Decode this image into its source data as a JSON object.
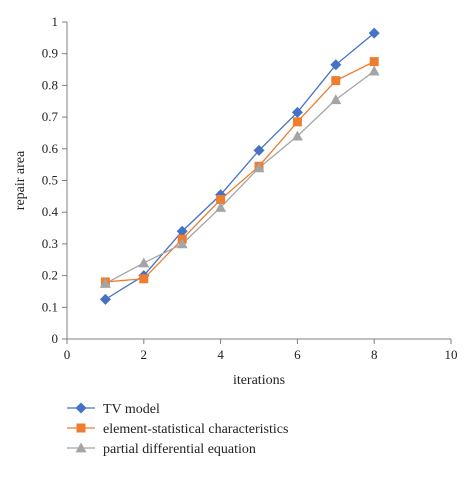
{
  "chart_data": {
    "type": "line",
    "xlabel": "iterations",
    "ylabel": "repair area",
    "xlim": [
      0,
      10
    ],
    "ylim": [
      0,
      1
    ],
    "xticks": [
      0,
      2,
      4,
      6,
      8,
      10
    ],
    "yticks": [
      0,
      0.1,
      0.2,
      0.3,
      0.4,
      0.5,
      0.6,
      0.7,
      0.8,
      0.9,
      1
    ],
    "grid": false,
    "legend_position": "bottom",
    "x": [
      1,
      2,
      3,
      4,
      5,
      6,
      7,
      8
    ],
    "series": [
      {
        "name": "TV model",
        "color": "#4472c4",
        "marker": "diamond",
        "values": [
          0.125,
          0.2,
          0.34,
          0.455,
          0.595,
          0.715,
          0.865,
          0.965
        ]
      },
      {
        "name": "element-statistical characteristics",
        "color": "#ed7d31",
        "marker": "square",
        "values": [
          0.18,
          0.19,
          0.315,
          0.44,
          0.545,
          0.685,
          0.815,
          0.875
        ]
      },
      {
        "name": "partial differential equation",
        "color": "#a5a5a5",
        "marker": "triangle",
        "values": [
          0.175,
          0.24,
          0.3,
          0.415,
          0.54,
          0.64,
          0.755,
          0.845
        ]
      }
    ]
  }
}
